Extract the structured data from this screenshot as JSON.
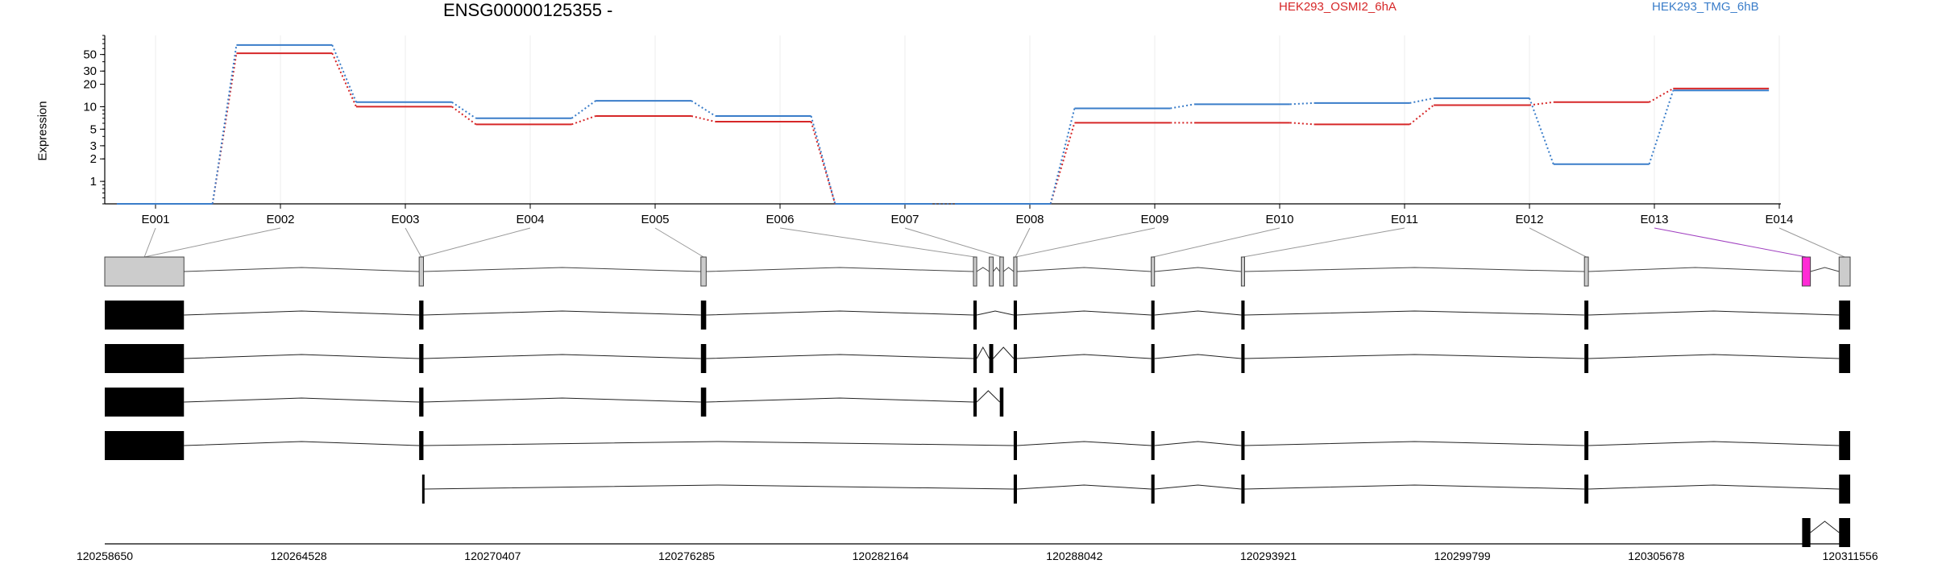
{
  "header": {
    "title": "ENSG00000125355 -"
  },
  "chart_data": {
    "type": "line",
    "ylabel": "Expression",
    "yscale": "log",
    "ylim": [
      0.5,
      90
    ],
    "y_ticks": [
      1,
      2,
      3,
      5,
      10,
      20,
      30,
      50
    ],
    "exons": [
      "E001",
      "E002",
      "E003",
      "E004",
      "E005",
      "E006",
      "E007",
      "E008",
      "E009",
      "E010",
      "E011",
      "E012",
      "E013",
      "E014"
    ],
    "series": [
      {
        "name": "HEK293_OSMI2_6hA",
        "color": "#d62728",
        "values": [
          0.5,
          52,
          10,
          5.8,
          7.5,
          6.3,
          0.5,
          0.5,
          6.1,
          6.1,
          5.8,
          10.5,
          11.5,
          17.5
        ]
      },
      {
        "name": "HEK293_TMG_6hB",
        "color": "#3a7dc9",
        "values": [
          0.5,
          67,
          11.5,
          7,
          12,
          7.5,
          0.5,
          0.5,
          9.5,
          10.8,
          11.2,
          13,
          1.7,
          16.5
        ]
      }
    ],
    "genomic_axis": {
      "range": [
        120258650,
        120311556
      ],
      "tick_labels": [
        "120258650",
        "120264528",
        "120270407",
        "120276285",
        "120282164",
        "120288042",
        "120293921",
        "120299799",
        "120305678",
        "120311556"
      ]
    },
    "exon_blocks": [
      {
        "start": 120258650,
        "end": 120261050
      },
      {
        "start": 120268180,
        "end": 120268310
      },
      {
        "start": 120276720,
        "end": 120276880
      },
      {
        "start": 120284980,
        "end": 120285080
      },
      {
        "start": 120285460,
        "end": 120285580
      },
      {
        "start": 120285780,
        "end": 120285890
      },
      {
        "start": 120286200,
        "end": 120286300
      },
      {
        "start": 120290370,
        "end": 120290470
      },
      {
        "start": 120293100,
        "end": 120293200
      },
      {
        "start": 120303500,
        "end": 120303620
      },
      {
        "start": 120310100,
        "end": 120310350
      },
      {
        "start": 120311220,
        "end": 120311556
      }
    ],
    "highlighted_exon_color": "#ff2bd5",
    "transcripts": [
      [
        [
          120258650,
          120261050
        ],
        [
          120268180,
          120268310
        ],
        [
          120276720,
          120276880
        ],
        [
          120284980,
          120285080
        ],
        [
          120286200,
          120286300
        ],
        [
          120290370,
          120290470
        ],
        [
          120293100,
          120293200
        ],
        [
          120303500,
          120303620
        ],
        [
          120311220,
          120311556
        ]
      ],
      [
        [
          120258650,
          120261050
        ],
        [
          120268180,
          120268310
        ],
        [
          120276720,
          120276880
        ],
        [
          120284980,
          120285080
        ],
        [
          120285460,
          120285580
        ],
        [
          120286200,
          120286300
        ],
        [
          120290370,
          120290470
        ],
        [
          120293100,
          120293200
        ],
        [
          120303500,
          120303620
        ],
        [
          120311220,
          120311556
        ]
      ],
      [
        [
          120258650,
          120261050
        ],
        [
          120268180,
          120268310
        ],
        [
          120276720,
          120276880
        ],
        [
          120284980,
          120285080
        ],
        [
          120285780,
          120285890
        ]
      ],
      [
        [
          120258650,
          120261050
        ],
        [
          120268180,
          120268310
        ],
        [
          120286200,
          120286300
        ],
        [
          120290370,
          120290470
        ],
        [
          120293100,
          120293200
        ],
        [
          120303500,
          120303620
        ],
        [
          120311220,
          120311556
        ]
      ],
      [
        [
          120268270,
          120268310
        ],
        [
          120286200,
          120286300
        ],
        [
          120290370,
          120290470
        ],
        [
          120293100,
          120293200
        ],
        [
          120303500,
          120303620
        ],
        [
          120311220,
          120311556
        ]
      ],
      [
        [
          120310100,
          120310350
        ],
        [
          120311220,
          120311556
        ]
      ]
    ]
  }
}
